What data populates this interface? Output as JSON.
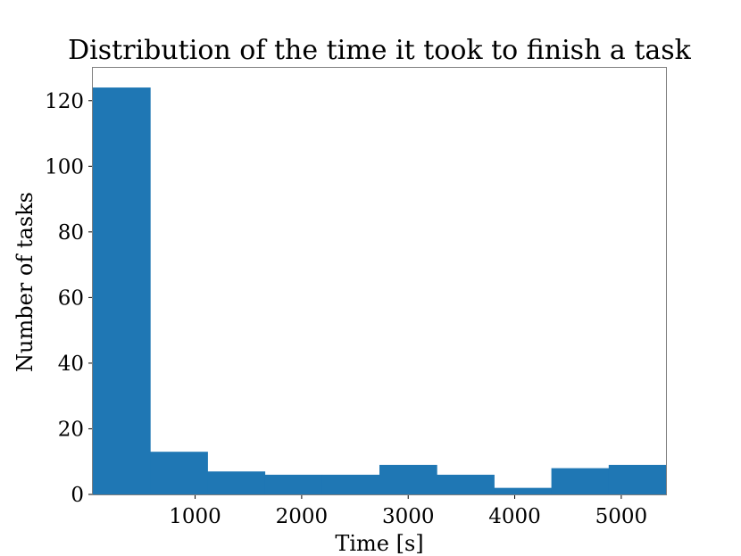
{
  "chart_data": {
    "type": "bar",
    "title": "Distribution of the time it took to finish a task",
    "xlabel": "Time [s]",
    "ylabel": "Number of tasks",
    "xlim": [
      40,
      5420
    ],
    "ylim": [
      0,
      130
    ],
    "x_ticks": [
      1000,
      2000,
      3000,
      4000,
      5000
    ],
    "x_tick_labels": [
      "1000",
      "2000",
      "3000",
      "4000",
      "5000"
    ],
    "y_ticks": [
      0,
      20,
      40,
      60,
      80,
      100,
      120
    ],
    "y_tick_labels": [
      "0",
      "20",
      "40",
      "60",
      "80",
      "100",
      "120"
    ],
    "bin_edges": [
      40,
      578,
      1116,
      1654,
      2192,
      2730,
      3268,
      3806,
      4344,
      4882,
      5420
    ],
    "values": [
      124,
      13,
      7,
      6,
      6,
      9,
      6,
      2,
      8,
      9
    ],
    "bar_color": "#1f77b4",
    "grid": false,
    "legend": "none"
  }
}
